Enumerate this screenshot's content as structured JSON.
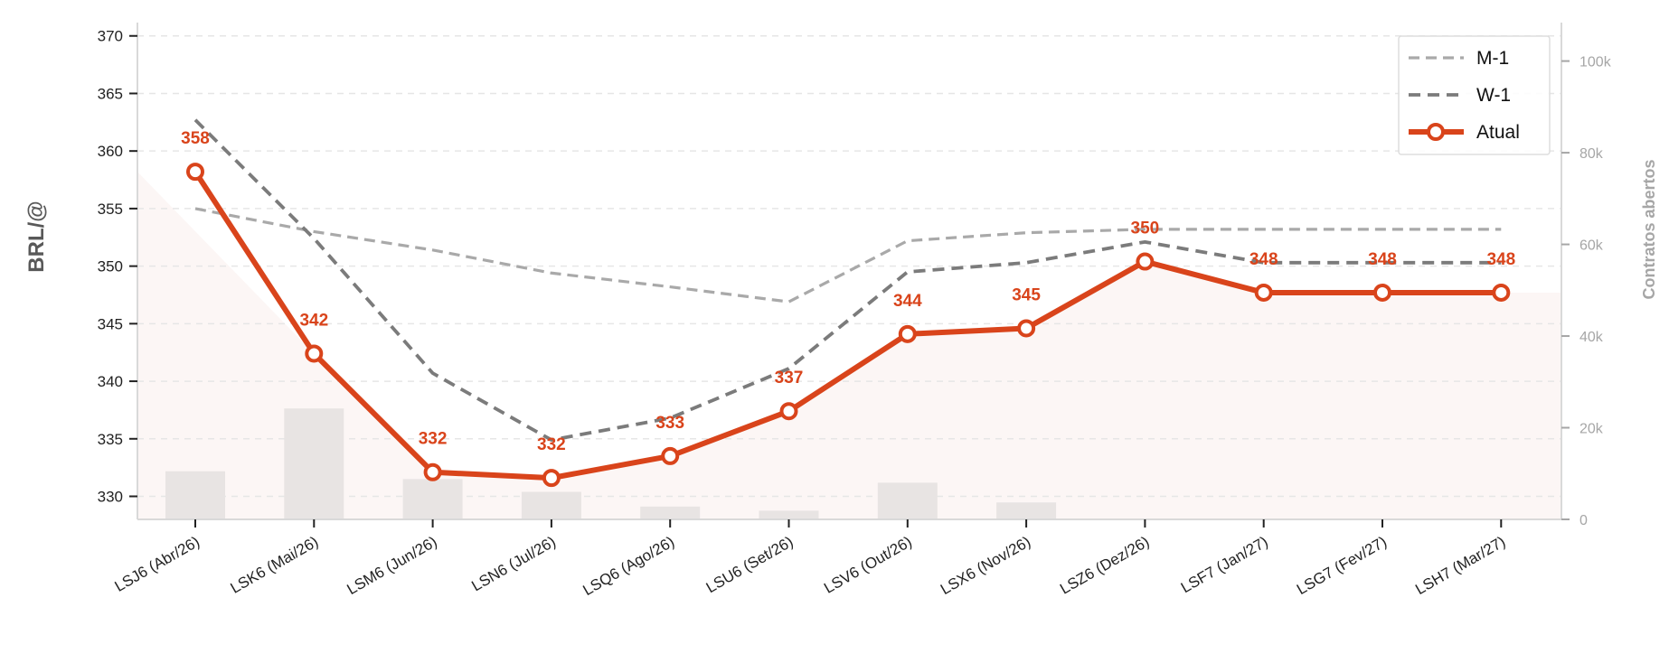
{
  "chart_data": {
    "type": "line",
    "categories": [
      "LSJ6 (Abr/26)",
      "LSK6 (Mai/26)",
      "LSM6 (Jun/26)",
      "LSN6 (Jul/26)",
      "LSQ6 (Ago/26)",
      "LSU6 (Set/26)",
      "LSV6 (Out/26)",
      "LSX6 (Nov/26)",
      "LSZ6 (Dez/26)",
      "LSF7 (Jan/27)",
      "LSG7 (Fev/27)",
      "LSH7 (Mar/27)"
    ],
    "ylabel": "BRL/@",
    "ylim": [
      328,
      371
    ],
    "yticks": [
      330,
      335,
      340,
      345,
      350,
      355,
      360,
      365,
      370
    ],
    "y2label": "Contratos abertos",
    "y2lim": [
      0,
      108000
    ],
    "y2ticks": [
      0,
      20000,
      40000,
      60000,
      80000,
      100000
    ],
    "y2tick_labels": [
      "0",
      "20k",
      "40k",
      "60k",
      "80k",
      "100k"
    ],
    "grid": true,
    "legend_position": "top-right",
    "colors": {
      "atual": "#d9441b",
      "w1": "#7b7b7b",
      "m1": "#a9a9a9",
      "bars": "#e8e4e3",
      "area": "#fcf6f5",
      "grid": "#e6e6e6",
      "axis": "#d9d9d9"
    },
    "series": [
      {
        "name": "M-1",
        "style": "dashed",
        "values": [
          355.0,
          353.0,
          351.4,
          349.4,
          348.2,
          346.9,
          352.2,
          352.9,
          353.2,
          353.2,
          353.2,
          353.2
        ]
      },
      {
        "name": "W-1",
        "style": "dashed",
        "values": [
          362.7,
          352.4,
          340.7,
          334.9,
          336.8,
          341.1,
          349.5,
          350.3,
          352.1,
          350.3,
          350.3,
          350.3
        ]
      },
      {
        "name": "Atual",
        "style": "solid-marker",
        "values": [
          358.2,
          342.4,
          332.1,
          331.6,
          333.5,
          337.4,
          344.1,
          344.6,
          350.4,
          347.7,
          347.7,
          347.7
        ],
        "data_labels": [
          "358",
          "342",
          "332",
          "332",
          "333",
          "337",
          "344",
          "345",
          "350",
          "348",
          "348",
          "348"
        ]
      }
    ],
    "open_interest": {
      "name": "Contratos abertos",
      "values": [
        10500,
        24200,
        8800,
        6000,
        2800,
        1900,
        8000,
        3700,
        0,
        0,
        0,
        0
      ]
    }
  }
}
